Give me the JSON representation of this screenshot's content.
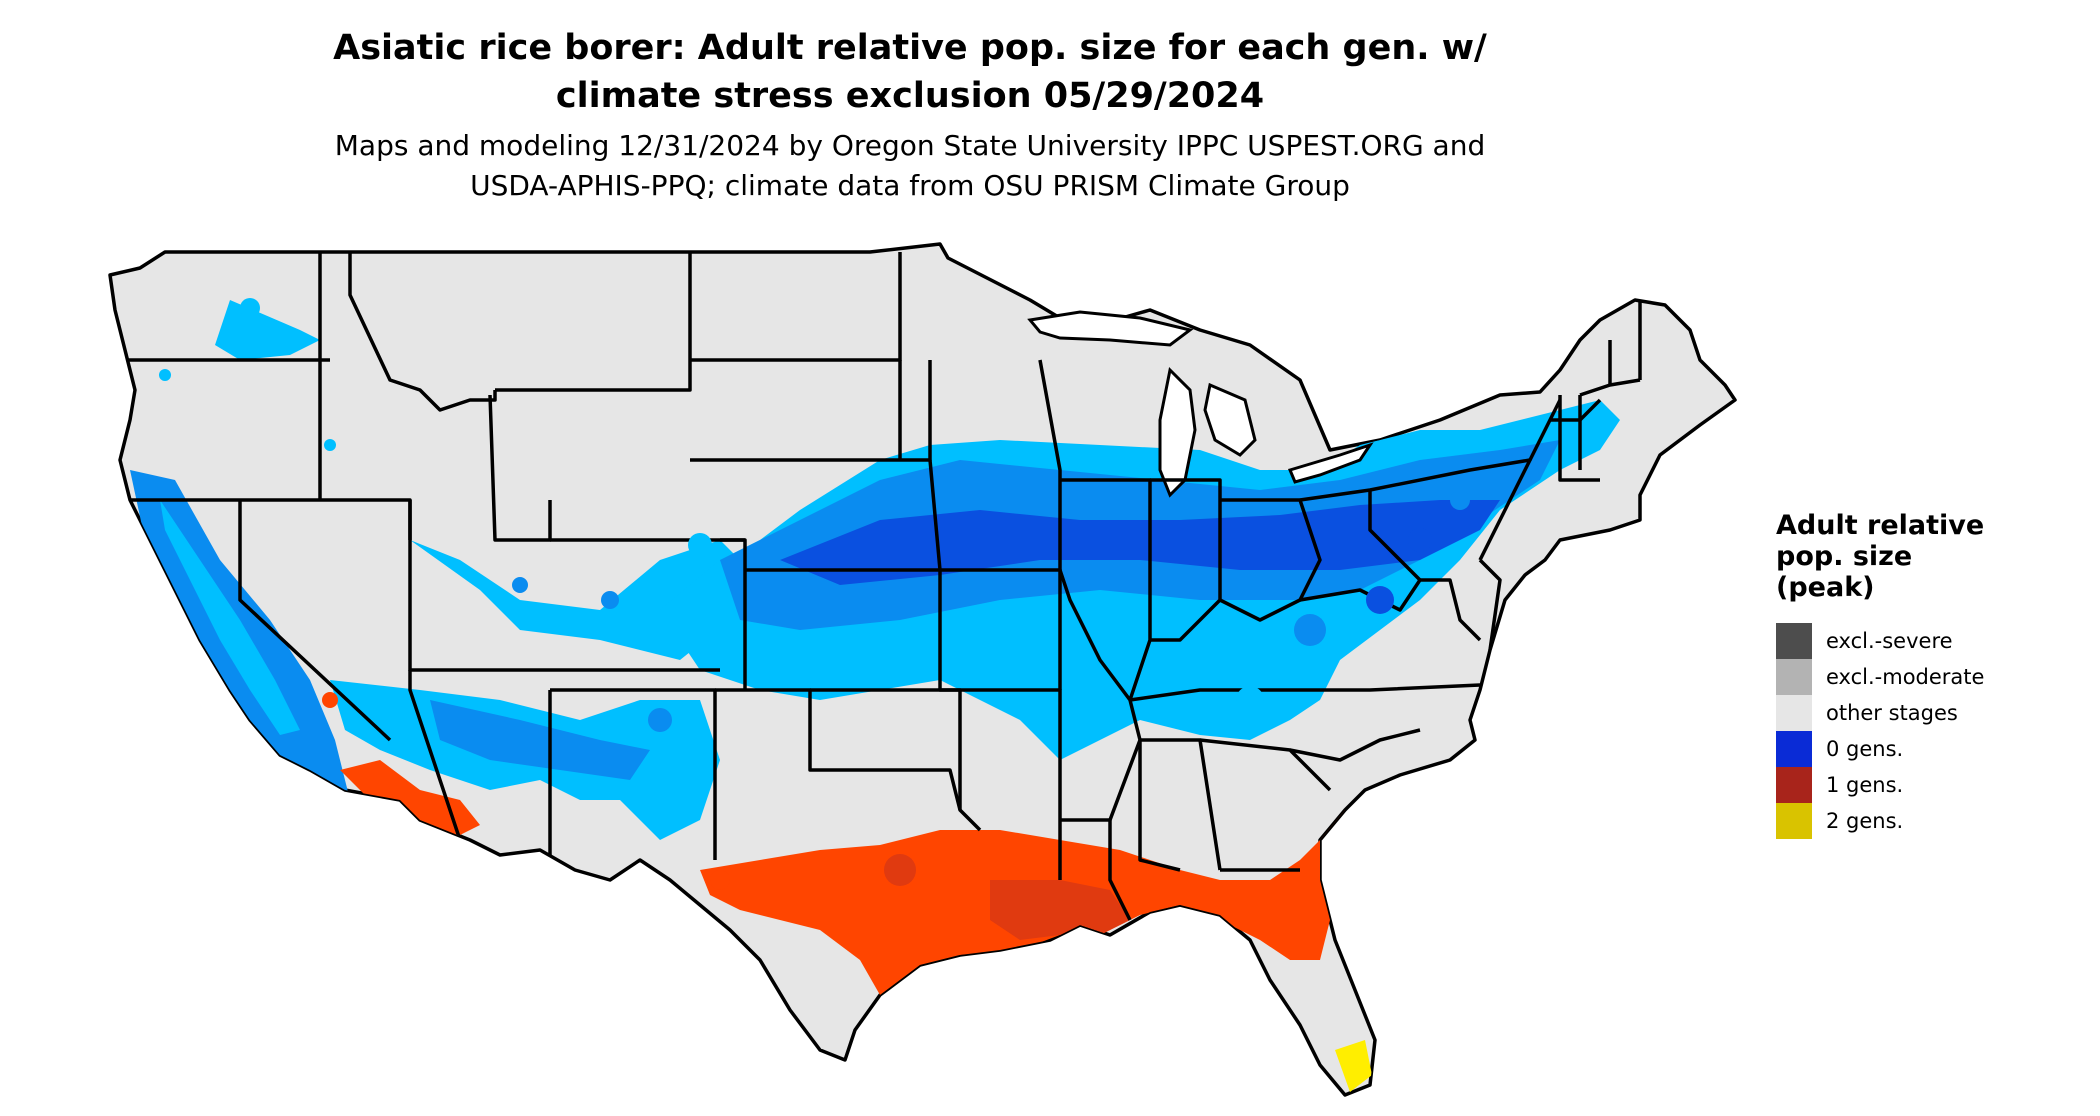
{
  "title": {
    "line1": "Asiatic rice borer: Adult relative pop. size for each gen. w/",
    "line2": "climate stress exclusion 05/29/2024"
  },
  "subtitle": {
    "line1": "Maps and modeling 12/31/2024 by Oregon State University IPPC USPEST.ORG and",
    "line2": "USDA-APHIS-PPQ; climate data from OSU PRISM Climate Group"
  },
  "legend": {
    "title_lines": [
      "Adult relative",
      "pop. size",
      "(peak)"
    ],
    "items": [
      {
        "label": "excl.-severe",
        "color": "#4d4d4d"
      },
      {
        "label": "excl.-moderate",
        "color": "#b3b3b3"
      },
      {
        "label": "other stages",
        "color": "#e6e6e6"
      },
      {
        "label": "0 gens.",
        "color": "#0a2bd6"
      },
      {
        "label": "1 gens.",
        "color": "#a8241b"
      },
      {
        "label": "2 gens.",
        "color": "#d9c300"
      }
    ]
  },
  "map_colors": {
    "land": "#e6e6e6",
    "border": "#000000",
    "blue_light": "#00bfff",
    "blue_mid": "#0a8cf0",
    "blue_dark": "#0a50e0",
    "orange": "#ff4500",
    "orange_dark": "#e03a10",
    "yellow": "#ffee00"
  }
}
